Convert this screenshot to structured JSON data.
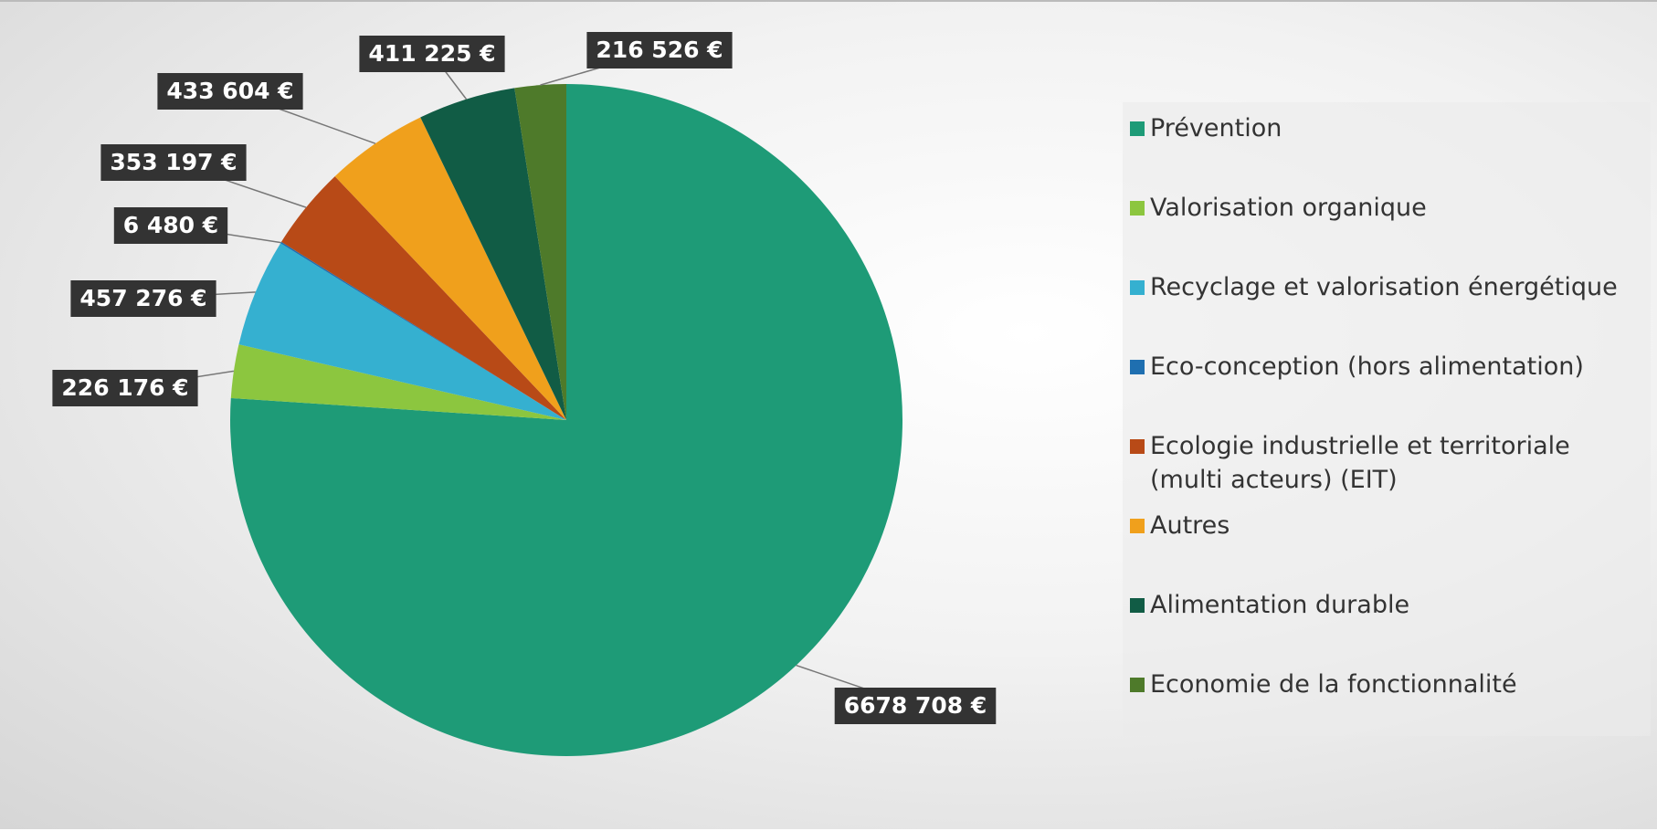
{
  "chart_data": {
    "type": "pie",
    "categories": [
      "Prévention",
      "Valorisation organique",
      "Recyclage et valorisation énergétique",
      "Eco-conception (hors alimentation)",
      "Ecologie industrielle et territoriale (multi acteurs) (EIT)",
      "Autres",
      "Alimentation durable",
      "Economie de la fonctionnalité"
    ],
    "values": [
      6678708,
      226176,
      457276,
      6480,
      353197,
      433604,
      411225,
      216526
    ],
    "value_labels": [
      "6678 708 €",
      "226 176 €",
      "457 276 €",
      "6 480 €",
      "353 197 €",
      "433 604 €",
      "411 225 €",
      "216 526 €"
    ],
    "colors": [
      "#1e9b77",
      "#8cc63f",
      "#35b0d0",
      "#1f6fb0",
      "#b84a17",
      "#f0a01c",
      "#115c45",
      "#4e7a2a"
    ],
    "legend": "right"
  }
}
